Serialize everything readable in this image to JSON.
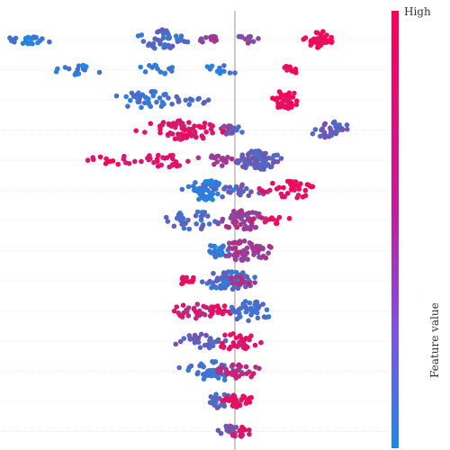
{
  "chart_data": {
    "type": "scatter",
    "subtype": "beeswarm",
    "rows": 14,
    "zero_line": true,
    "grid": false,
    "colorbar": {
      "high_label": "High",
      "title": "Feature value",
      "low_color": "#1e88e5",
      "high_color": "#ff0052"
    },
    "clusters": [
      [
        [
          -4.0,
          0.1,
          6,
          0.1
        ],
        [
          -3.6,
          0.2,
          16,
          0.1
        ],
        [
          -1.3,
          0.3,
          40,
          0.2
        ],
        [
          -0.5,
          0.2,
          12,
          0.5
        ],
        [
          0.2,
          0.15,
          10,
          0.5
        ],
        [
          1.5,
          0.2,
          36,
          0.95
        ]
      ],
      [
        [
          -2.8,
          0.4,
          16,
          0.1
        ],
        [
          -1.4,
          0.3,
          14,
          0.1
        ],
        [
          -0.2,
          0.3,
          12,
          0.1
        ],
        [
          1.0,
          0.1,
          12,
          0.9
        ]
      ],
      [
        [
          -1.6,
          0.35,
          36,
          0.15
        ],
        [
          -0.8,
          0.25,
          14,
          0.2
        ],
        [
          0.9,
          0.2,
          36,
          0.92
        ]
      ],
      [
        [
          -0.9,
          0.6,
          76,
          0.85
        ],
        [
          -0.1,
          0.2,
          12,
          0.3
        ],
        [
          1.7,
          0.3,
          34,
          0.3
        ]
      ],
      [
        [
          -2.2,
          0.4,
          14,
          0.9
        ],
        [
          -1.2,
          0.4,
          26,
          0.85
        ],
        [
          -0.3,
          0.3,
          20,
          0.6
        ],
        [
          0.4,
          0.3,
          74,
          0.3
        ]
      ],
      [
        [
          -0.5,
          0.3,
          56,
          0.1
        ],
        [
          0.15,
          0.3,
          20,
          0.35
        ],
        [
          1.0,
          0.4,
          36,
          0.9
        ]
      ],
      [
        [
          -0.7,
          0.4,
          36,
          0.2
        ],
        [
          0.1,
          0.35,
          56,
          0.55
        ],
        [
          0.6,
          0.25,
          12,
          0.9
        ]
      ],
      [
        [
          -0.3,
          0.15,
          26,
          0.1
        ],
        [
          0.2,
          0.4,
          56,
          0.55
        ]
      ],
      [
        [
          -0.75,
          0.25,
          12,
          0.9
        ],
        [
          -0.1,
          0.35,
          80,
          0.2
        ],
        [
          0.1,
          0.2,
          10,
          0.7
        ]
      ],
      [
        [
          -0.7,
          0.35,
          30,
          0.75
        ],
        [
          -0.25,
          0.2,
          16,
          0.9
        ],
        [
          0.25,
          0.3,
          40,
          0.2
        ]
      ],
      [
        [
          -0.6,
          0.35,
          30,
          0.3
        ],
        [
          0.05,
          0.3,
          36,
          0.85
        ]
      ],
      [
        [
          -0.4,
          0.4,
          50,
          0.15
        ],
        [
          0.05,
          0.3,
          30,
          0.7
        ]
      ],
      [
        [
          -0.2,
          0.3,
          30,
          0.25
        ],
        [
          0.0,
          0.25,
          26,
          0.9
        ]
      ],
      [
        [
          -0.1,
          0.2,
          20,
          0.4
        ],
        [
          0.1,
          0.15,
          16,
          0.9
        ]
      ]
    ]
  }
}
